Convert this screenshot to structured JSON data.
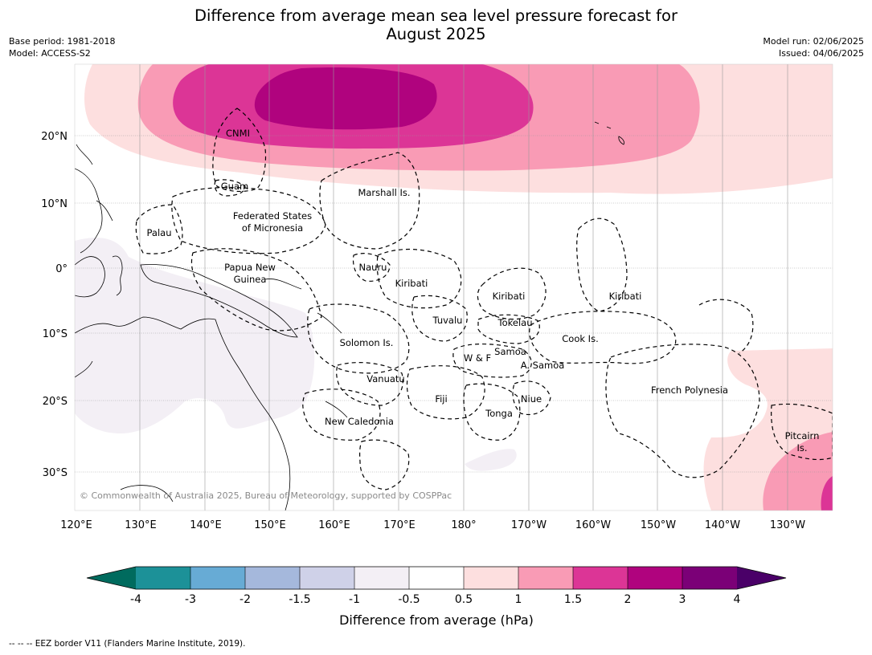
{
  "header": {
    "title_line1": "Difference from average mean sea level pressure forecast for",
    "title_line2": "August 2025",
    "base_period": "Base period: 1981-2018",
    "model": "Model: ACCESS-S2",
    "model_run": "Model run: 02/06/2025",
    "issued": "Issued: 04/06/2025"
  },
  "map": {
    "lat_labels": [
      "20°N",
      "10°N",
      "0°",
      "10°S",
      "20°S",
      "30°S"
    ],
    "lon_labels": [
      "120°E",
      "130°E",
      "140°E",
      "150°E",
      "160°E",
      "170°E",
      "180°",
      "170°W",
      "160°W",
      "150°W",
      "140°W",
      "130°W"
    ],
    "places": {
      "cnmi": "CNMI",
      "guam": "Guam",
      "marshall": "Marshall Is.",
      "fsm_line1": "Federated States",
      "fsm_line2": "of Micronesia",
      "palau": "Palau",
      "png_line1": "Papua New",
      "png_line2": "Guinea",
      "nauru": "Nauru",
      "kiribati_west": "Kiribati",
      "kiribati_central": "Kiribati",
      "kiribati_east": "Kiribati",
      "tuvalu": "Tuvalu",
      "tokelau": "Tokelau",
      "cook": "Cook Is.",
      "solomon": "Solomon Is.",
      "samoa": "Samoa",
      "wf": "W & F",
      "asamoa": "A. Samoa",
      "vanuatu": "Vanuatu",
      "fiji": "Fiji",
      "niue": "Niue",
      "tonga": "Tonga",
      "french_polynesia": "French Polynesia",
      "new_caledonia": "New Caledonia",
      "pitcairn_line1": "Pitcairn",
      "pitcairn_line2": "Is."
    },
    "copyright": "© Commonwealth of Australia 2025, Bureau of Meteorology, supported by COSPPac"
  },
  "colorbar": {
    "title": "Difference from average (hPa)",
    "ticks": [
      "-4",
      "-3",
      "-2",
      "-1.5",
      "-1",
      "-0.5",
      "0.5",
      "1",
      "1.5",
      "2",
      "3",
      "4"
    ],
    "colors": {
      "below_min": "#006b5e",
      "b1": "#1c9198",
      "b2": "#67abd5",
      "b3": "#a5b8dc",
      "b4": "#cfd1e8",
      "b5": "#f3eff5",
      "b6": "#ffffff",
      "b7": "#fddfdf",
      "b8": "#f99bb5",
      "b9": "#dc3596",
      "b10": "#b0037e",
      "b11": "#7b0077",
      "above_max": "#4a0068"
    }
  },
  "footer": {
    "legend": "--  --  -- EEZ border V11 (Flanders Marine Institute, 2019)."
  }
}
